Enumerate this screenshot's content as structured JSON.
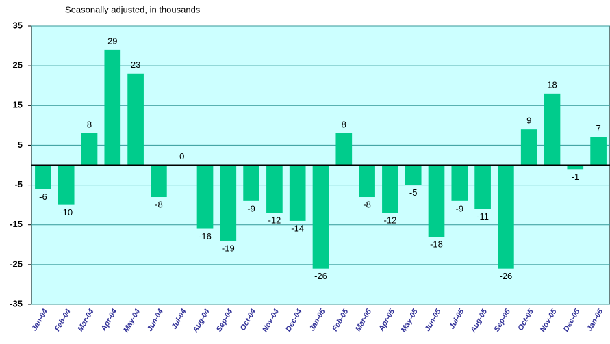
{
  "chart_data": {
    "type": "bar",
    "title": "Seasonally adjusted, in thousands",
    "categories": [
      "Jan-04",
      "Feb-04",
      "Mar-04",
      "Apr-04",
      "May-04",
      "Jun-04",
      "Jul-04",
      "Aug-04",
      "Sep-04",
      "Oct-04",
      "Nov-04",
      "Dec-04",
      "Jan-05",
      "Feb-05",
      "Mar-05",
      "Apr-05",
      "May-05",
      "Jun-05",
      "Jul-05",
      "Aug-05",
      "Sep-05",
      "Oct-05",
      "Nov-05",
      "Dec-05",
      "Jan-06"
    ],
    "values": [
      -6,
      -10,
      8,
      29,
      23,
      -8,
      0,
      -16,
      -19,
      -9,
      -12,
      -14,
      -26,
      8,
      -8,
      -12,
      -5,
      -18,
      -9,
      -11,
      -26,
      9,
      18,
      -1,
      7
    ],
    "color": "#00cc8c",
    "background": "#ccffff",
    "grid_color": "#339999",
    "ylim": [
      -35,
      35
    ],
    "yticks": [
      -35,
      -25,
      -15,
      -5,
      5,
      15,
      25,
      35
    ],
    "grid": true
  }
}
